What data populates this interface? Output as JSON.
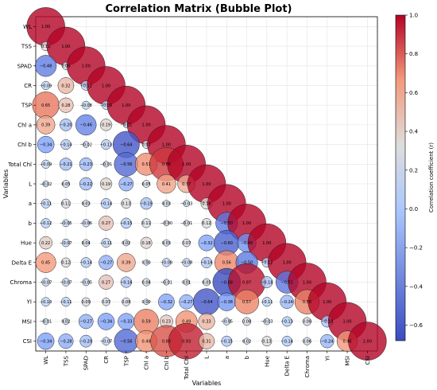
{
  "chart_data": {
    "type": "heatmap",
    "style": "bubble",
    "title": "Correlation Matrix (Bubble Plot)",
    "xlabel": "Variables",
    "ylabel": "Variables",
    "colorbar_label": "Correlation coefficient (r)",
    "colorbar_range": [
      -0.68,
      1.0
    ],
    "colorbar_ticks": [
      "1.0",
      "0.8",
      "0.6",
      "0.4",
      "0.2",
      "0.0",
      "−0.2",
      "−0.4",
      "−0.6"
    ],
    "colormap": [
      "#3b4cc0",
      "#dddddd",
      "#b40426"
    ],
    "grid": true,
    "variables": [
      "WL",
      "TSS",
      "SPAD",
      "CR",
      "TSP",
      "Chl a",
      "Chl b",
      "Total Chl",
      "L",
      "a",
      "b",
      "Hue",
      "Delta E",
      "Chroma",
      "YI",
      "MSI",
      "CSI"
    ],
    "matrix": [
      [
        1.0
      ],
      [
        0.11,
        1.0
      ],
      [
        -0.48,
        0.06,
        1.0
      ],
      [
        -0.09,
        0.32,
        -0.12,
        1.0
      ],
      [
        0.65,
        0.28,
        -0.08,
        -0.09,
        1.0
      ],
      [
        0.39,
        -0.2,
        -0.46,
        0.19,
        -0.01,
        1.0
      ],
      [
        -0.34,
        -0.14,
        -0.02,
        -0.13,
        -0.64,
        0.07,
        1.0
      ],
      [
        -0.09,
        -0.21,
        -0.23,
        -0.01,
        -0.56,
        0.51,
        0.86,
        1.0
      ],
      [
        -0.02,
        0.05,
        -0.22,
        0.19,
        -0.27,
        0.05,
        0.41,
        0.37,
        1.0
      ],
      [
        -0.11,
        0.11,
        0.03,
        -0.14,
        0.13,
        -0.19,
        0.03,
        -0.03,
        0.18,
        1.0
      ],
      [
        -0.12,
        -0.05,
        -0.06,
        0.27,
        -0.15,
        0.11,
        -0.0,
        -0.01,
        0.12,
        -0.5,
        1.0
      ],
      [
        0.22,
        -0.07,
        0.04,
        -0.11,
        0.02,
        0.18,
        0.03,
        0.07,
        -0.32,
        -0.6,
        -0.4,
        1.0
      ],
      [
        0.45,
        0.12,
        -0.14,
        -0.27,
        0.39,
        0.0,
        -0.09,
        -0.08,
        -0.16,
        0.56,
        -0.5,
        -0.12,
        1.0
      ],
      [
        -0.07,
        -0.07,
        -0.05,
        0.27,
        -0.16,
        0.06,
        -0.01,
        0.01,
        0.05,
        -0.68,
        0.97,
        -0.18,
        -0.51,
        1.0
      ],
      [
        -0.1,
        -0.11,
        0.09,
        0.07,
        0.08,
        0.0,
        -0.32,
        -0.27,
        -0.64,
        -0.38,
        0.57,
        -0.11,
        -0.24,
        0.58,
        1.0
      ],
      [
        -0.01,
        0.02,
        -0.27,
        -0.34,
        -0.33,
        0.59,
        0.23,
        0.49,
        0.33,
        -0.05,
        0.08,
        -0.03,
        -0.13,
        0.08,
        -0.18,
        1.0
      ],
      [
        -0.34,
        -0.28,
        -0.2,
        -0.07,
        -0.56,
        0.49,
        0.8,
        0.93,
        0.31,
        -0.15,
        0.02,
        0.13,
        -0.14,
        0.06,
        -0.24,
        0.46,
        1.0
      ]
    ]
  }
}
